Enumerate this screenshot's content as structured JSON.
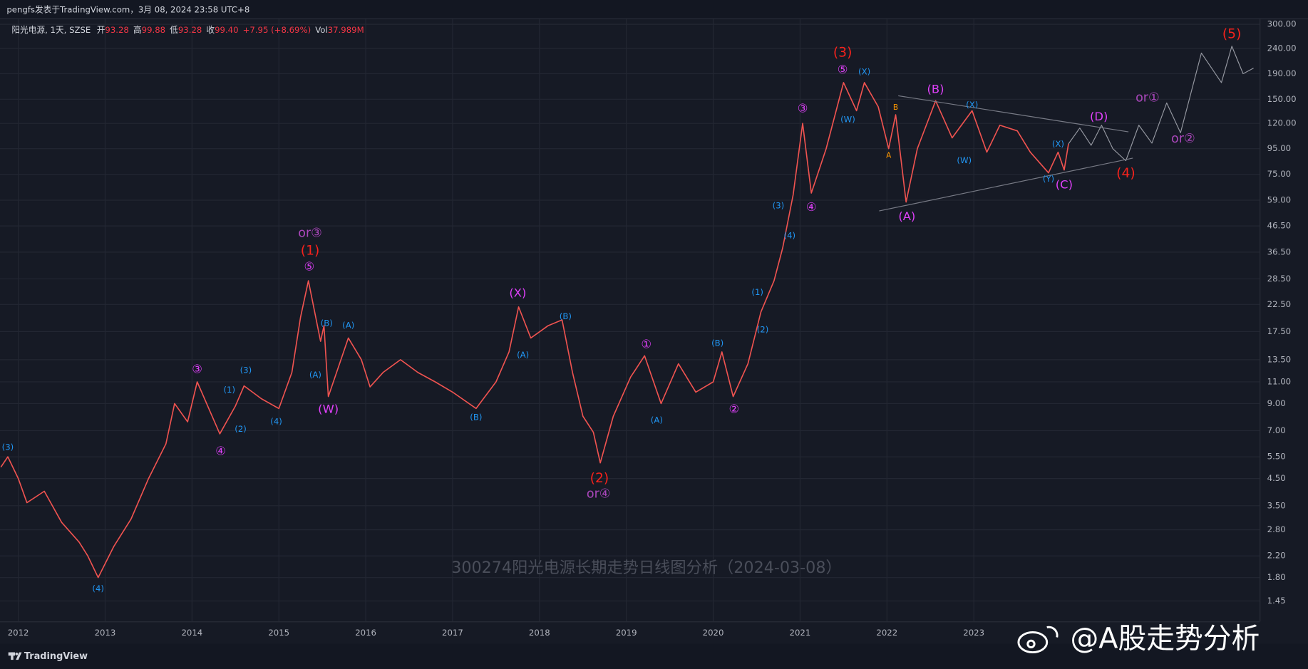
{
  "header": {
    "byline": "pengfs发表于TradingView.com，3月 08, 2024 23:58 UTC+8"
  },
  "legend": {
    "symbol": "阳光电源, 1天, SZSE",
    "open_label": "开",
    "open": "93.28",
    "high_label": "高",
    "high": "99.88",
    "low_label": "低",
    "low": "93.28",
    "close_label": "收",
    "close": "99.40",
    "change": "+7.95 (+8.69%)",
    "volume_label": "Vol",
    "volume": "37.989M"
  },
  "watermark": "300274阳光电源长期走势日线图分析（2024-03-08）",
  "footer": {
    "brand": "TradingView",
    "weibo": "@A股走势分析"
  },
  "chart_data": {
    "type": "line",
    "log_y": true,
    "grid": true,
    "xlim": [
      2011.79,
      2026.29
    ],
    "xticks": [
      2012,
      2013,
      2014,
      2015,
      2016,
      2017,
      2018,
      2019,
      2020,
      2021,
      2022,
      2023
    ],
    "ylim": [
      1.2,
      317
    ],
    "yticks": [
      1.45,
      {
        "value": 1.8,
        "label": "1.80"
      },
      {
        "value": 2.2,
        "label": "2.20"
      },
      {
        "value": 2.8,
        "label": "2.80"
      },
      {
        "value": 3.5,
        "label": "3.50"
      },
      {
        "value": 4.5,
        "label": "4.50"
      },
      {
        "value": 5.5,
        "label": "5.50"
      },
      {
        "value": 7,
        "label": "7.00"
      },
      {
        "value": 9,
        "label": "9.00"
      },
      {
        "value": 11,
        "label": "11.00"
      },
      {
        "value": 13.5,
        "label": "13.50"
      },
      {
        "value": 17.5,
        "label": "17.50"
      },
      {
        "value": 22.5,
        "label": "22.50"
      },
      {
        "value": 28.5,
        "label": "28.50"
      },
      {
        "value": 36.5,
        "label": "36.50"
      },
      {
        "value": 46.5,
        "label": "46.50"
      },
      {
        "value": 59,
        "label": "59.00"
      },
      {
        "value": 75,
        "label": "75.00"
      },
      {
        "value": 95,
        "label": "95.00"
      },
      {
        "value": 120,
        "label": "120.00"
      },
      {
        "value": 150,
        "label": "150.00"
      },
      {
        "value": 190,
        "label": "190.00"
      },
      {
        "value": 240,
        "label": "240.00"
      },
      {
        "value": 300,
        "label": "300.00"
      }
    ],
    "series": [
      {
        "color": "#ef5350",
        "x": [
          2011.8,
          2011.88,
          2012.0,
          2012.1,
          2012.3,
          2012.5,
          2012.7,
          2012.8,
          2012.92,
          2013.1,
          2013.3,
          2013.5,
          2013.7,
          2013.8,
          2013.95,
          2014.06,
          2014.32,
          2014.5,
          2014.6,
          2014.8,
          2015.0,
          2015.15,
          2015.25,
          2015.34,
          2015.48,
          2015.52,
          2015.57,
          2015.8,
          2015.95,
          2016.05,
          2016.2,
          2016.4,
          2016.6,
          2016.8,
          2017.0,
          2017.27,
          2017.5,
          2017.65,
          2017.76,
          2017.9,
          2018.1,
          2018.26,
          2018.38,
          2018.5,
          2018.62,
          2018.7,
          2018.85,
          2019.05,
          2019.21,
          2019.4,
          2019.6,
          2019.8,
          2020.0,
          2020.1,
          2020.23,
          2020.4,
          2020.55,
          2020.7,
          2020.8,
          2020.92,
          2021.03,
          2021.13,
          2021.3,
          2021.5,
          2021.65,
          2021.74,
          2021.9,
          2022.02,
          2022.1,
          2022.22,
          2022.35,
          2022.56,
          2022.75,
          2022.98,
          2023.15,
          2023.3,
          2023.5,
          2023.65,
          2023.86,
          2023.97,
          2024.04,
          2024.09
        ],
        "values": [
          5.0,
          5.5,
          4.5,
          3.6,
          4.0,
          3.0,
          2.5,
          2.2,
          1.8,
          2.4,
          3.1,
          4.5,
          6.2,
          9.0,
          7.6,
          11.0,
          6.8,
          8.8,
          10.6,
          9.4,
          8.6,
          12.0,
          20.0,
          28.0,
          16.0,
          18.5,
          9.6,
          16.5,
          13.5,
          10.5,
          12.0,
          13.5,
          12.0,
          11.0,
          10.0,
          8.6,
          11.0,
          14.5,
          22.0,
          16.5,
          18.5,
          19.5,
          12.0,
          8.0,
          6.9,
          5.2,
          8.0,
          11.5,
          14.0,
          9.0,
          13.0,
          10.0,
          11.0,
          14.5,
          9.6,
          13.0,
          21.0,
          28.0,
          38.0,
          62.0,
          120.0,
          63.0,
          95.0,
          175.0,
          135.0,
          175.0,
          140.0,
          95.0,
          130.0,
          58.0,
          95.0,
          148.0,
          105.0,
          135.0,
          92.0,
          118.0,
          112.0,
          92.0,
          76.0,
          92.0,
          78.0,
          99.4
        ]
      },
      {
        "color": "#9598a1",
        "x": [
          2024.09,
          2024.22,
          2024.35,
          2024.47,
          2024.6,
          2024.75,
          2024.9,
          2025.05,
          2025.22,
          2025.38,
          2025.62,
          2025.85,
          2025.97,
          2026.1,
          2026.22
        ],
        "values": [
          99.4,
          115,
          98,
          118,
          95,
          85,
          118,
          100,
          145,
          110,
          230,
          175,
          245,
          190,
          200
        ]
      },
      {
        "color": "#787b86",
        "x": [
          2022.13,
          2024.78
        ],
        "values": [
          155,
          111
        ]
      },
      {
        "color": "#787b86",
        "x": [
          2021.91,
          2024.83
        ],
        "values": [
          53.4,
          87
        ]
      }
    ],
    "annotations": [
      {
        "text": "(3)",
        "x": 2011.88,
        "y": 6.0,
        "color": "#2196f3"
      },
      {
        "text": "(4)",
        "x": 2012.92,
        "y": 1.62,
        "color": "#2196f3"
      },
      {
        "text": "③",
        "x": 2014.06,
        "y": 12.3,
        "color": "#e040fb"
      },
      {
        "text": "④",
        "x": 2014.33,
        "y": 5.76,
        "color": "#e040fb"
      },
      {
        "text": "(1)",
        "x": 2014.43,
        "y": 10.2,
        "color": "#2196f3"
      },
      {
        "text": "(2)",
        "x": 2014.56,
        "y": 7.1,
        "color": "#2196f3"
      },
      {
        "text": "(3)",
        "x": 2014.62,
        "y": 12.2,
        "color": "#2196f3"
      },
      {
        "text": "(4)",
        "x": 2014.97,
        "y": 7.6,
        "color": "#2196f3"
      },
      {
        "text": "⑤",
        "x": 2015.35,
        "y": 31.8,
        "color": "#e040fb"
      },
      {
        "text": "(1)",
        "x": 2015.36,
        "y": 36.9,
        "color": "#f7221c"
      },
      {
        "text": "or③",
        "x": 2015.36,
        "y": 43.4,
        "color": "#ab47bc"
      },
      {
        "text": "(A)",
        "x": 2015.42,
        "y": 11.7,
        "color": "#2196f3"
      },
      {
        "text": "(B)",
        "x": 2015.55,
        "y": 18.9,
        "color": "#2196f3"
      },
      {
        "text": "(A)",
        "x": 2015.8,
        "y": 18.5,
        "color": "#2196f3"
      },
      {
        "text": "(W)",
        "x": 2015.57,
        "y": 8.5,
        "color": "#e040fb"
      },
      {
        "text": "(B)",
        "x": 2017.27,
        "y": 7.9,
        "color": "#2196f3"
      },
      {
        "text": "(X)",
        "x": 2017.75,
        "y": 24.9,
        "color": "#e040fb"
      },
      {
        "text": "(A)",
        "x": 2017.81,
        "y": 14.1,
        "color": "#2196f3"
      },
      {
        "text": "(B)",
        "x": 2018.3,
        "y": 20.1,
        "color": "#2196f3"
      },
      {
        "text": "(2)",
        "x": 2018.69,
        "y": 4.5,
        "color": "#f7221c"
      },
      {
        "text": "or④",
        "x": 2018.68,
        "y": 3.9,
        "color": "#ab47bc"
      },
      {
        "text": "①",
        "x": 2019.23,
        "y": 15.5,
        "color": "#e040fb"
      },
      {
        "text": "(A)",
        "x": 2019.35,
        "y": 7.7,
        "color": "#2196f3"
      },
      {
        "text": "(B)",
        "x": 2020.05,
        "y": 15.7,
        "color": "#2196f3"
      },
      {
        "text": "②",
        "x": 2020.24,
        "y": 8.5,
        "color": "#e040fb"
      },
      {
        "text": "(1)",
        "x": 2020.51,
        "y": 25.1,
        "color": "#2196f3"
      },
      {
        "text": "(2)",
        "x": 2020.57,
        "y": 17.8,
        "color": "#2196f3"
      },
      {
        "text": "(3)",
        "x": 2020.75,
        "y": 56,
        "color": "#2196f3"
      },
      {
        "text": "(4)",
        "x": 2020.88,
        "y": 42.4,
        "color": "#2196f3"
      },
      {
        "text": "③",
        "x": 2021.03,
        "y": 137,
        "color": "#e040fb"
      },
      {
        "text": "④",
        "x": 2021.13,
        "y": 55,
        "color": "#e040fb"
      },
      {
        "text": "⑤",
        "x": 2021.49,
        "y": 196,
        "color": "#e040fb"
      },
      {
        "text": "(3)",
        "x": 2021.49,
        "y": 231,
        "color": "#f7221c"
      },
      {
        "text": "(W)",
        "x": 2021.55,
        "y": 124,
        "color": "#2196f3"
      },
      {
        "text": "(X)",
        "x": 2021.74,
        "y": 193,
        "color": "#2196f3"
      },
      {
        "text": "B",
        "x": 2022.1,
        "y": 139,
        "color": "#ff9800"
      },
      {
        "text": "A",
        "x": 2022.02,
        "y": 89,
        "color": "#ff9800"
      },
      {
        "text": "(A)",
        "x": 2022.23,
        "y": 50.6,
        "color": "#e040fb"
      },
      {
        "text": "(B)",
        "x": 2022.56,
        "y": 164,
        "color": "#e040fb"
      },
      {
        "text": "(X)",
        "x": 2022.98,
        "y": 142,
        "color": "#2196f3"
      },
      {
        "text": "(W)",
        "x": 2022.89,
        "y": 85,
        "color": "#2196f3"
      },
      {
        "text": "(X)",
        "x": 2023.97,
        "y": 99,
        "color": "#2196f3"
      },
      {
        "text": "(Y)",
        "x": 2023.86,
        "y": 71.6,
        "color": "#2196f3"
      },
      {
        "text": "(C)",
        "x": 2024.04,
        "y": 67.8,
        "color": "#e040fb"
      },
      {
        "text": "(D)",
        "x": 2024.44,
        "y": 127,
        "color": "#e040fb"
      },
      {
        "text": "(4)",
        "x": 2024.75,
        "y": 75.6,
        "color": "#f7221c"
      },
      {
        "text": "or①",
        "x": 2025.0,
        "y": 152,
        "color": "#ab47bc"
      },
      {
        "text": "or②",
        "x": 2025.41,
        "y": 104,
        "color": "#ab47bc"
      },
      {
        "text": "(5)",
        "x": 2025.97,
        "y": 274,
        "color": "#f7221c"
      }
    ]
  }
}
